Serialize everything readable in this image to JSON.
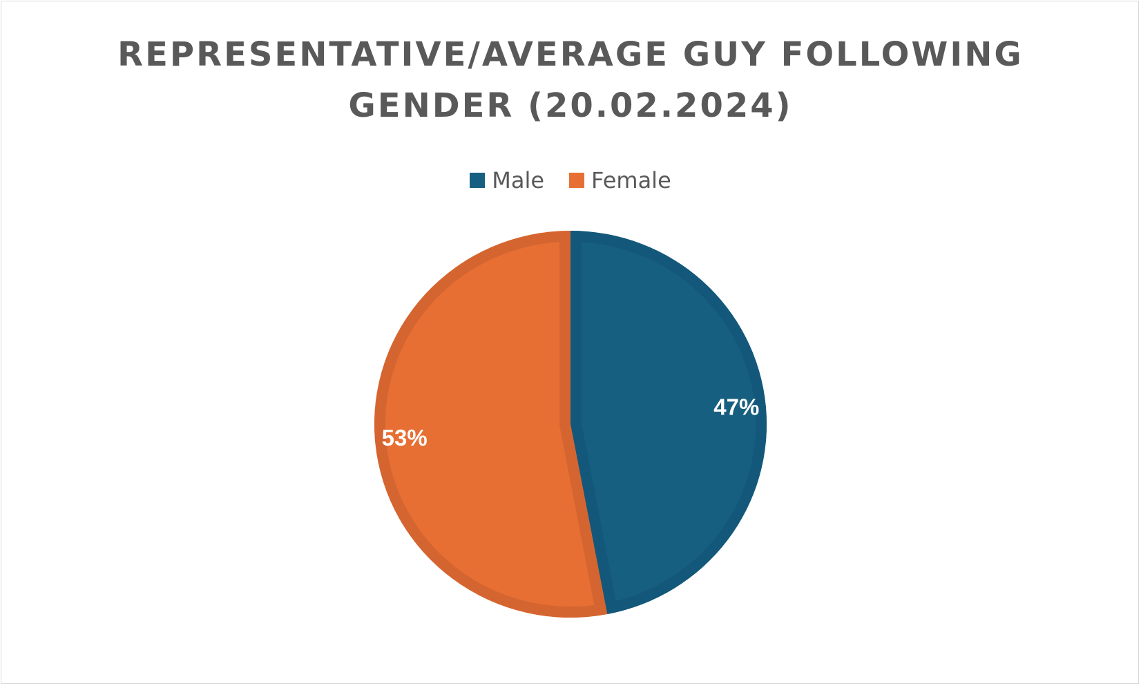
{
  "chart_data": {
    "type": "pie",
    "title_lines": [
      "REPRESENTATIVE/AVERAGE GUY FOLLOWING",
      "GENDER (20.02.2024)"
    ],
    "legend_position": "top",
    "start_angle_deg": 0,
    "direction": "clockwise",
    "slices": [
      {
        "name": "Male",
        "value": 47,
        "label": "47%",
        "color": "#175F80",
        "border": "#13587A"
      },
      {
        "name": "Female",
        "value": 53,
        "label": "53%",
        "color": "#E76F33",
        "border": "#D56530"
      }
    ]
  }
}
